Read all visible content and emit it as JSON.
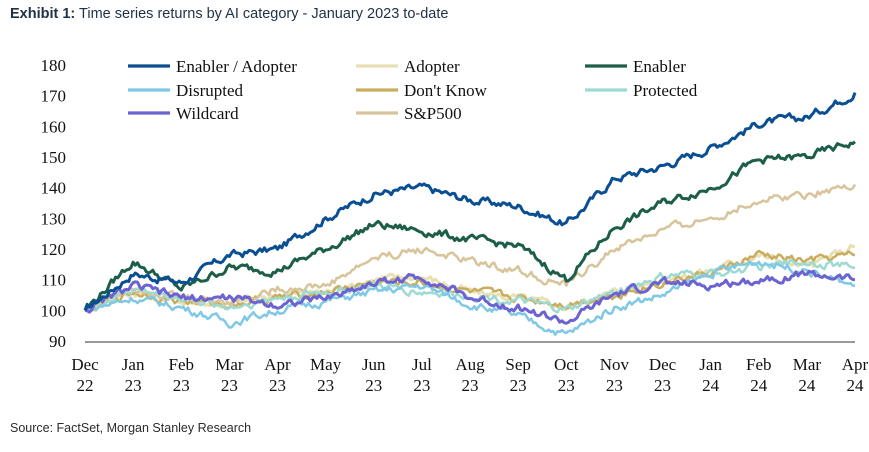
{
  "header": {
    "exhibit_label": "Exhibit 1:",
    "title_text": "Time series returns by AI category - January 2023 to-date"
  },
  "footer": {
    "source": "Source: FactSet, Morgan Stanley Research"
  },
  "chart_data": {
    "type": "line",
    "title": "Time series returns by AI category - January 2023 to-date",
    "xlabel": "",
    "ylabel": "",
    "ylim": [
      90,
      180
    ],
    "yticks": [
      90,
      100,
      110,
      120,
      130,
      140,
      150,
      160,
      170,
      180
    ],
    "grid": false,
    "legend_position": "top",
    "x_tick_labels": [
      [
        "Dec",
        "22"
      ],
      [
        "Jan",
        "23"
      ],
      [
        "Feb",
        "23"
      ],
      [
        "Mar",
        "23"
      ],
      [
        "Apr",
        "23"
      ],
      [
        "May",
        "23"
      ],
      [
        "Jun",
        "23"
      ],
      [
        "Jul",
        "23"
      ],
      [
        "Aug",
        "23"
      ],
      [
        "Sep",
        "23"
      ],
      [
        "Oct",
        "23"
      ],
      [
        "Nov",
        "23"
      ],
      [
        "Dec",
        "23"
      ],
      [
        "Jan",
        "24"
      ],
      [
        "Feb",
        "24"
      ],
      [
        "Mar",
        "24"
      ],
      [
        "Apr",
        "24"
      ]
    ],
    "x": [
      "2022-12-31",
      "2023-01-31",
      "2023-02-28",
      "2023-03-31",
      "2023-04-30",
      "2023-05-31",
      "2023-06-30",
      "2023-07-31",
      "2023-08-31",
      "2023-09-30",
      "2023-10-31",
      "2023-11-30",
      "2023-12-31",
      "2024-01-31",
      "2024-02-29",
      "2024-03-31",
      "2024-04-30"
    ],
    "series": [
      {
        "name": "Enabler / Adopter",
        "color": "#0b4f93",
        "width": 3,
        "values": [
          100,
          112,
          109,
          118,
          120,
          130,
          138,
          140,
          136,
          134,
          128,
          143,
          147,
          153,
          161,
          163,
          171
        ]
      },
      {
        "name": "Adopter",
        "color": "#e8dfb4",
        "width": 3,
        "values": [
          100,
          106,
          103,
          102,
          105,
          106,
          110,
          111,
          106,
          104,
          101,
          106,
          110,
          113,
          118,
          114,
          121
        ]
      },
      {
        "name": "Enabler",
        "color": "#1c5e4a",
        "width": 3,
        "values": [
          100,
          116,
          107,
          114,
          113,
          120,
          128,
          126,
          123,
          121,
          110,
          127,
          135,
          140,
          149,
          150,
          155
        ]
      },
      {
        "name": "Disrupted",
        "color": "#7fc8e6",
        "width": 2.5,
        "values": [
          100,
          104,
          101,
          96,
          100,
          103,
          106,
          108,
          102,
          98,
          92,
          101,
          105,
          112,
          116,
          113,
          108
        ]
      },
      {
        "name": "Don't Know",
        "color": "#c9ad5e",
        "width": 2.5,
        "values": [
          100,
          106,
          103,
          102,
          104,
          106,
          109,
          109,
          106,
          104,
          102,
          105,
          109,
          112,
          118,
          116,
          118
        ]
      },
      {
        "name": "Protected",
        "color": "#9ddbd2",
        "width": 2.5,
        "values": [
          100,
          107,
          104,
          101,
          104,
          106,
          108,
          106,
          105,
          103,
          100,
          106,
          111,
          112,
          114,
          116,
          114
        ]
      },
      {
        "name": "Wildcard",
        "color": "#6b63d1",
        "width": 3,
        "values": [
          100,
          108,
          104,
          104,
          102,
          104,
          109,
          111,
          104,
          101,
          96,
          105,
          109,
          108,
          110,
          112,
          110
        ]
      },
      {
        "name": "S&P500",
        "color": "#d8c49a",
        "width": 2.5,
        "values": [
          100,
          108,
          104,
          103,
          107,
          108,
          117,
          120,
          116,
          113,
          108,
          120,
          126,
          130,
          136,
          138,
          141
        ]
      }
    ]
  }
}
